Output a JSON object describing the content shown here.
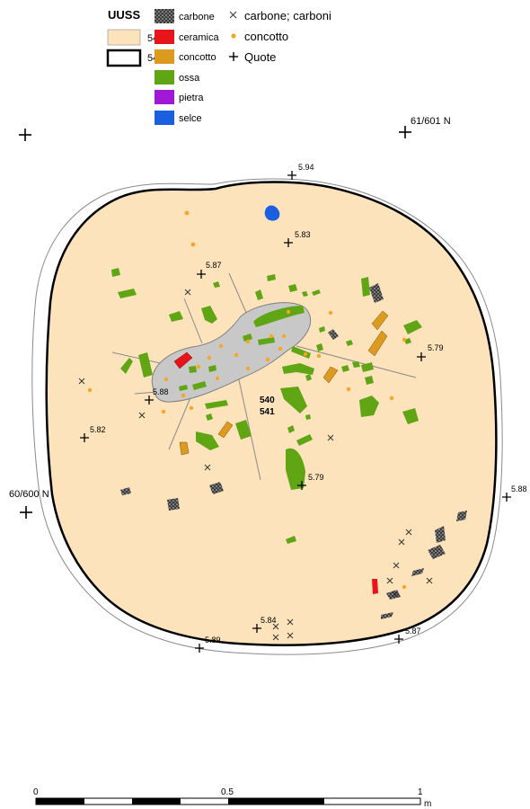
{
  "legend": {
    "title": "UUSS",
    "units": [
      {
        "label": "540",
        "style": "fill"
      },
      {
        "label": "541",
        "style": "outline"
      }
    ],
    "fills": [
      {
        "label": "carbone",
        "color": "#5a5a5a",
        "pattern": "speckled"
      },
      {
        "label": "ceramica",
        "color": "#e8141b"
      },
      {
        "label": "concotto",
        "color": "#dc9a1e"
      },
      {
        "label": "ossa",
        "color": "#5fa514"
      },
      {
        "label": "pietra",
        "color": "#a119d6"
      },
      {
        "label": "selce",
        "color": "#1a5fe0"
      }
    ],
    "symbols": [
      {
        "label": "carbone; carboni",
        "icon": "x-mark-icon"
      },
      {
        "label": "concotto",
        "icon": "orange-dot-icon"
      },
      {
        "label": "Quote",
        "icon": "plus-marker-icon"
      }
    ]
  },
  "grid_labels": {
    "ne": "61/601 N",
    "w": "60/600 N"
  },
  "unit_labels": {
    "upper": "540",
    "lower": "541"
  },
  "spot_heights": [
    "5.94",
    "5.83",
    "5.87",
    "5.79",
    "5.88",
    "5.82",
    "5.79",
    "5.88",
    "5.84",
    "5.87",
    "5.89"
  ],
  "scale": {
    "labels": [
      "0",
      "0.5",
      "1"
    ],
    "unit": "m"
  },
  "colors": {
    "fill_540": "#fde3bc",
    "central_gray": "#c8c8c8",
    "outline": "#000000"
  }
}
